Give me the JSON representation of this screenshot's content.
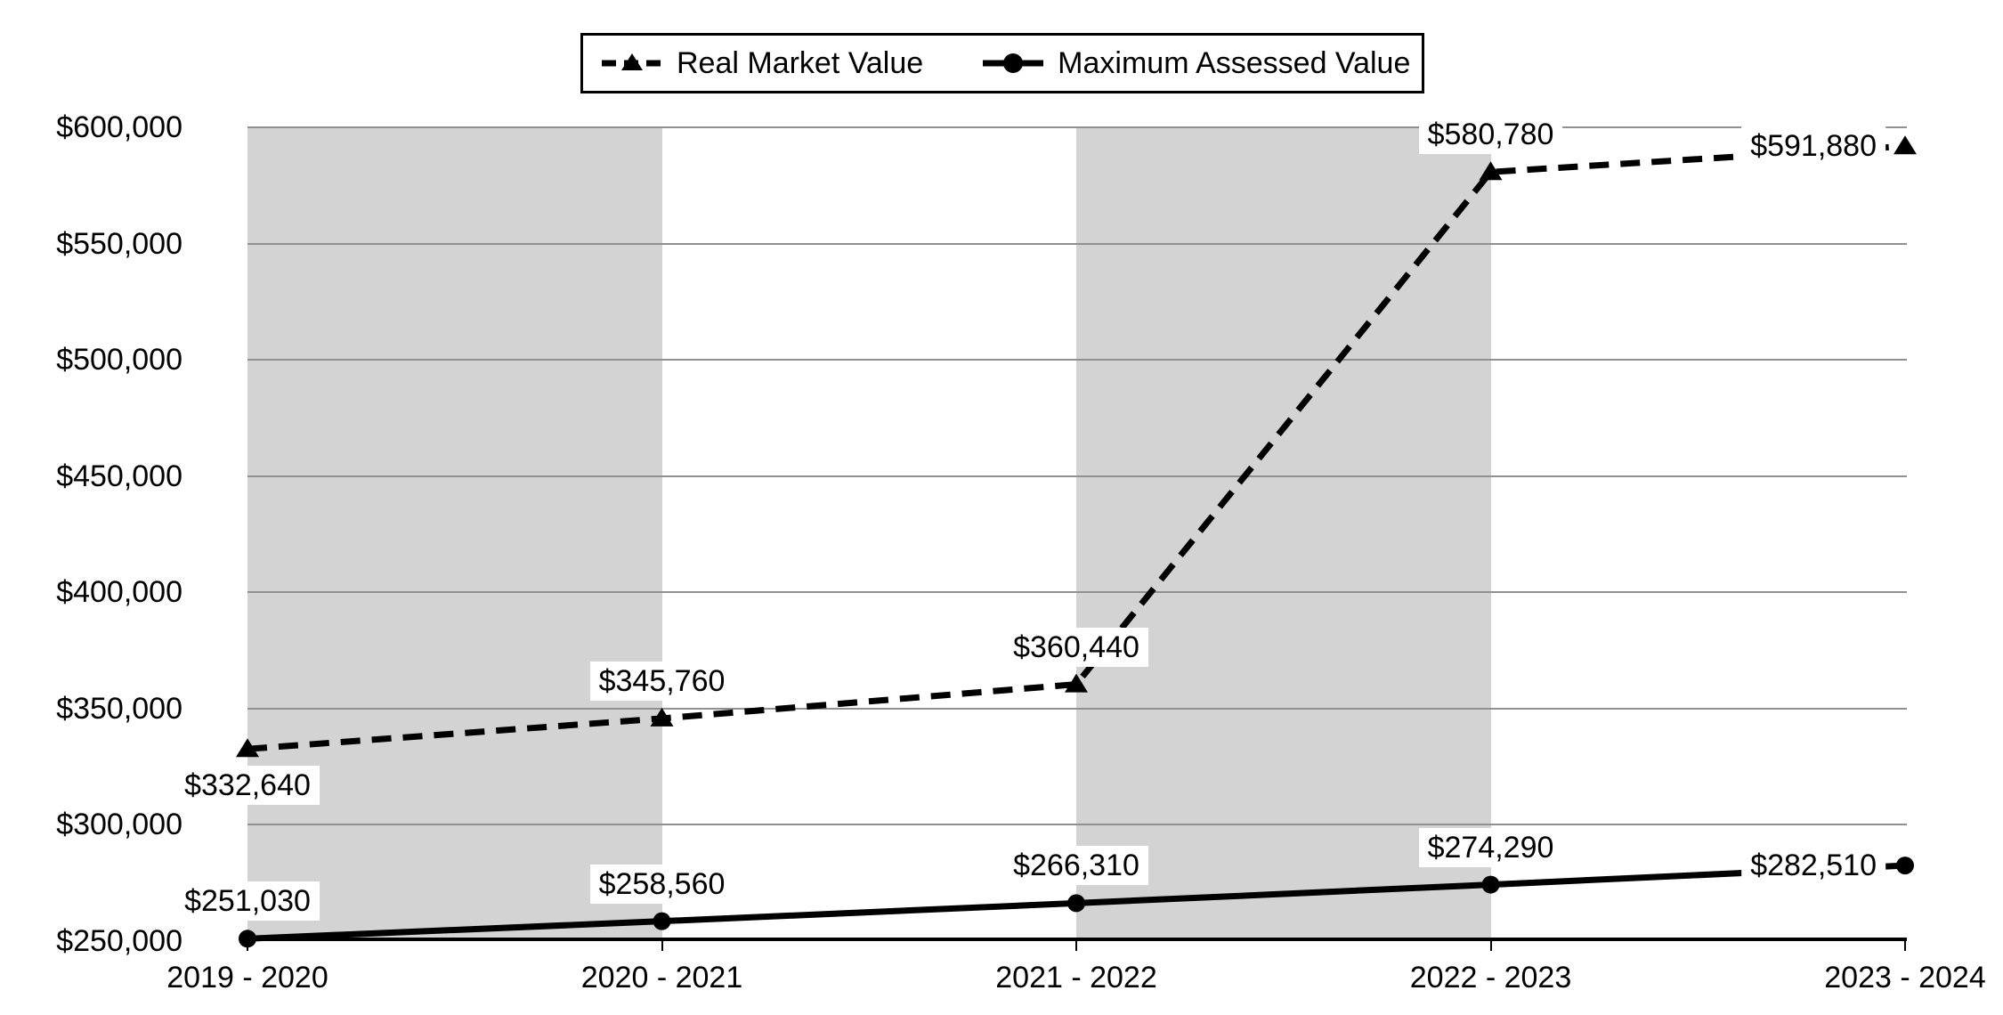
{
  "legend": {
    "items": [
      {
        "label": "Real Market Value",
        "line": "dashed",
        "marker": "triangle"
      },
      {
        "label": "Maximum Assessed Value",
        "line": "solid",
        "marker": "circle"
      }
    ]
  },
  "chart_data": {
    "type": "line",
    "title": "",
    "xlabel": "",
    "ylabel": "",
    "categories": [
      "2019 - 2020",
      "2020 - 2021",
      "2021 - 2022",
      "2022 - 2023",
      "2023 - 2024"
    ],
    "series": [
      {
        "name": "Real Market Value",
        "line_style": "dashed",
        "marker": "triangle",
        "color": "#000000",
        "values": [
          332640,
          345760,
          360440,
          580780,
          591880
        ],
        "labels": [
          "$332,640",
          "$345,760",
          "$360,440",
          "$580,780",
          "$591,880"
        ]
      },
      {
        "name": "Maximum Assessed Value",
        "line_style": "solid",
        "marker": "circle",
        "color": "#000000",
        "values": [
          251030,
          258560,
          266310,
          274290,
          282510
        ],
        "labels": [
          "$251,030",
          "$258,560",
          "$266,310",
          "$274,290",
          "$282,510"
        ]
      }
    ],
    "ylim": [
      250000,
      600000
    ],
    "ytick_step": 50000,
    "ytick_labels": [
      "$250,000",
      "$300,000",
      "$350,000",
      "$400,000",
      "$450,000",
      "$500,000",
      "$550,000",
      "$600,000"
    ],
    "grid": "horizontal gridlines on",
    "legend_position": "top-center, boxed",
    "plot_bands": "alternating light-gray column shading between category 0-1 and 2-3",
    "colors": {
      "series": "#000000",
      "band": "#d3d3d3",
      "gridline": "#909090",
      "background": "#ffffff",
      "label_background": "#ffffff"
    }
  }
}
